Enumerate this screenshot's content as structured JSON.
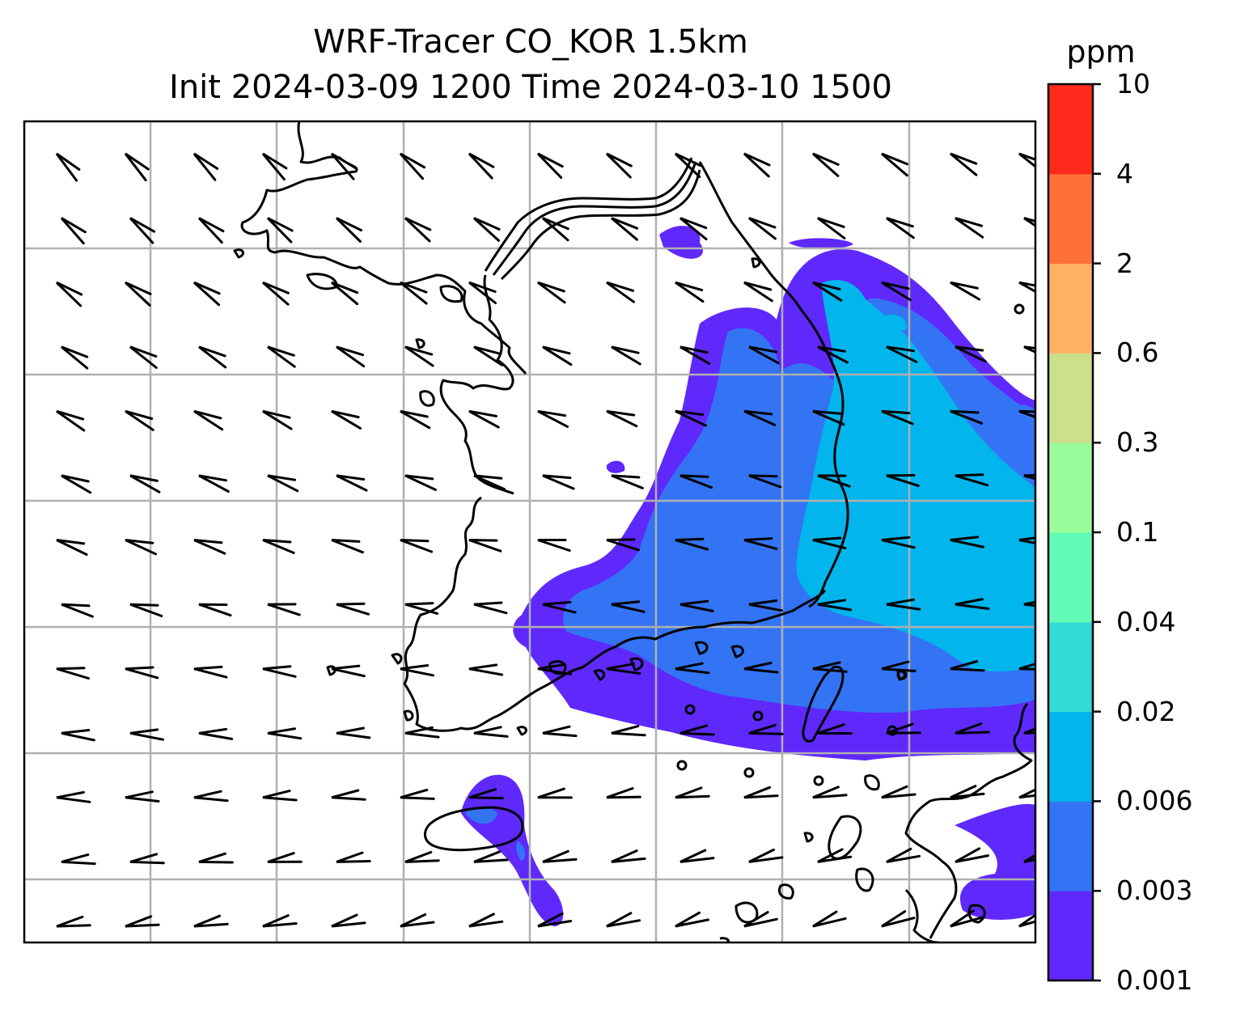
{
  "title": {
    "line1": "WRF-Tracer CO_KOR 1.5km",
    "line2": "Init 2024-03-09 1200 Time 2024-03-10 1500"
  },
  "colorbar": {
    "unit": "ppm",
    "levels": [
      "0.001",
      "0.003",
      "0.006",
      "0.02",
      "0.04",
      "0.1",
      "0.3",
      "0.6",
      "2",
      "4",
      "10"
    ],
    "colors": [
      "#5f29fb",
      "#3374f4",
      "#02b5ec",
      "#30dcd5",
      "#62fbb6",
      "#99fc9b",
      "#cce08a",
      "#ffb163",
      "#ff7038",
      "#ff2a1c"
    ]
  },
  "map": {
    "gridlines": "on",
    "coastline_color": "#000000",
    "grid_color": "#b0b0b0"
  }
}
